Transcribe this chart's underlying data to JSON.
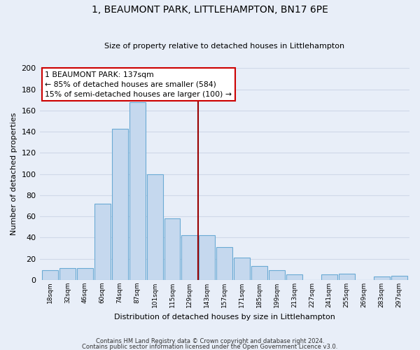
{
  "title": "1, BEAUMONT PARK, LITTLEHAMPTON, BN17 6PE",
  "subtitle": "Size of property relative to detached houses in Littlehampton",
  "xlabel": "Distribution of detached houses by size in Littlehampton",
  "ylabel": "Number of detached properties",
  "footer_line1": "Contains HM Land Registry data © Crown copyright and database right 2024.",
  "footer_line2": "Contains public sector information licensed under the Open Government Licence v3.0.",
  "bar_labels": [
    "18sqm",
    "32sqm",
    "46sqm",
    "60sqm",
    "74sqm",
    "87sqm",
    "101sqm",
    "115sqm",
    "129sqm",
    "143sqm",
    "157sqm",
    "171sqm",
    "185sqm",
    "199sqm",
    "213sqm",
    "227sqm",
    "241sqm",
    "255sqm",
    "269sqm",
    "283sqm",
    "297sqm"
  ],
  "bar_values": [
    9,
    11,
    11,
    72,
    143,
    168,
    100,
    58,
    42,
    42,
    31,
    21,
    13,
    9,
    5,
    0,
    5,
    6,
    0,
    3,
    4
  ],
  "bar_color": "#c5d8ee",
  "bar_edge_color": "#6aaad4",
  "vline_x": 8.5,
  "vline_color": "#990000",
  "annotation_title": "1 BEAUMONT PARK: 137sqm",
  "annotation_line1": "← 85% of detached houses are smaller (584)",
  "annotation_line2": "15% of semi-detached houses are larger (100) →",
  "annotation_box_color": "#ffffff",
  "annotation_box_edge_color": "#cc0000",
  "ylim": [
    0,
    200
  ],
  "yticks": [
    0,
    20,
    40,
    60,
    80,
    100,
    120,
    140,
    160,
    180,
    200
  ],
  "background_color": "#e8eef8",
  "grid_color": "#d0d8e8",
  "plot_bg_color": "#e8eef8"
}
